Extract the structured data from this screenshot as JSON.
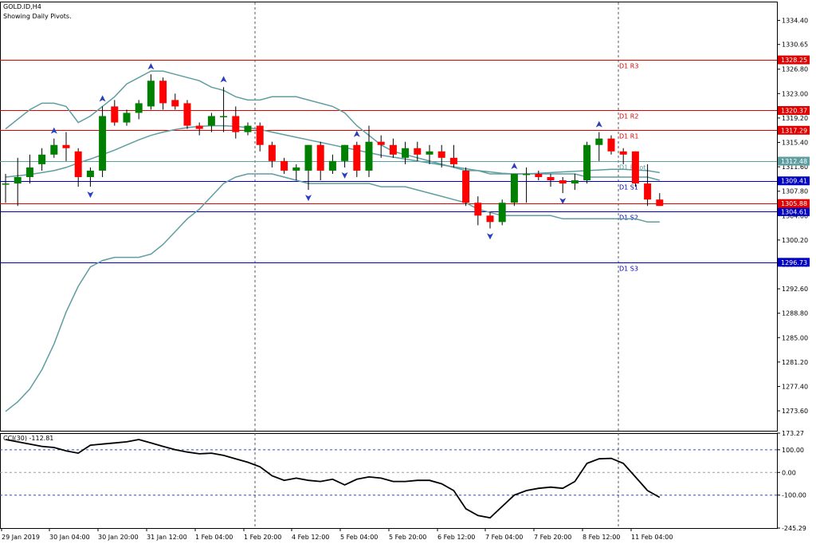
{
  "header": {
    "symbol": "GOLD.ID,H4",
    "subtitle": "Showing Daily Pivots."
  },
  "indicator": {
    "label": "CCI(30) -112.81"
  },
  "colors": {
    "bull": "#008000",
    "bear": "#ff0000",
    "band": "#5f9ea0",
    "resistance": "#e00000",
    "support": "#0000c0",
    "pivot": "#5f9ea0",
    "cci": "#000000",
    "cci_level": "#2f4fbf"
  },
  "chart_data": [
    {
      "type": "candlestick",
      "title": "GOLD.ID,H4",
      "subtitle": "Showing Daily Pivots.",
      "ylim": [
        1270.5,
        1337.2
      ],
      "price_ticks": [
        "1334.40",
        "1330.65",
        "1326.80",
        "1323.00",
        "1319.20",
        "1315.40",
        "1311.60",
        "1307.80",
        "1304.00",
        "1300.20",
        "1296.40",
        "1292.60",
        "1288.80",
        "1285.00",
        "1281.20",
        "1277.40",
        "1273.60"
      ],
      "x_ticks": [
        "29 Jan 2019",
        "30 Jan 04:00",
        "30 Jan 20:00",
        "31 Jan 12:00",
        "1 Feb 04:00",
        "1 Feb 20:00",
        "4 Feb 12:00",
        "5 Feb 04:00",
        "5 Feb 20:00",
        "6 Feb 12:00",
        "7 Feb 04:00",
        "7 Feb 20:00",
        "8 Feb 12:00",
        "11 Feb 04:00"
      ],
      "candles": [
        {
          "o": 1309.0,
          "h": 1310.5,
          "l": 1306.0,
          "c": 1309.0
        },
        {
          "o": 1309.0,
          "h": 1313.0,
          "l": 1305.5,
          "c": 1310.0
        },
        {
          "o": 1310.0,
          "h": 1313.5,
          "l": 1309.0,
          "c": 1311.5
        },
        {
          "o": 1312.0,
          "h": 1314.5,
          "l": 1311.0,
          "c": 1313.5
        },
        {
          "o": 1313.5,
          "h": 1316.0,
          "l": 1313.0,
          "c": 1315.0
        },
        {
          "o": 1315.0,
          "h": 1317.0,
          "l": 1312.5,
          "c": 1314.5
        },
        {
          "o": 1314.0,
          "h": 1314.5,
          "l": 1308.5,
          "c": 1310.0
        },
        {
          "o": 1310.0,
          "h": 1311.5,
          "l": 1308.5,
          "c": 1311.0
        },
        {
          "o": 1311.0,
          "h": 1321.0,
          "l": 1310.0,
          "c": 1319.5
        },
        {
          "o": 1321.0,
          "h": 1322.0,
          "l": 1318.0,
          "c": 1318.5
        },
        {
          "o": 1318.5,
          "h": 1320.5,
          "l": 1318.0,
          "c": 1320.0
        },
        {
          "o": 1320.0,
          "h": 1322.0,
          "l": 1319.0,
          "c": 1321.5
        },
        {
          "o": 1321.0,
          "h": 1326.0,
          "l": 1320.5,
          "c": 1325.0
        },
        {
          "o": 1325.0,
          "h": 1325.5,
          "l": 1320.5,
          "c": 1321.5
        },
        {
          "o": 1322.0,
          "h": 1323.0,
          "l": 1320.5,
          "c": 1321.0
        },
        {
          "o": 1321.5,
          "h": 1322.0,
          "l": 1317.5,
          "c": 1318.0
        },
        {
          "o": 1318.0,
          "h": 1318.5,
          "l": 1316.5,
          "c": 1317.5
        },
        {
          "o": 1318.0,
          "h": 1320.0,
          "l": 1317.0,
          "c": 1319.5
        },
        {
          "o": 1319.5,
          "h": 1324.0,
          "l": 1317.0,
          "c": 1319.5
        },
        {
          "o": 1319.5,
          "h": 1321.0,
          "l": 1316.0,
          "c": 1317.0
        },
        {
          "o": 1317.0,
          "h": 1318.5,
          "l": 1316.5,
          "c": 1318.0
        },
        {
          "o": 1318.0,
          "h": 1318.5,
          "l": 1314.0,
          "c": 1315.0
        },
        {
          "o": 1315.0,
          "h": 1315.5,
          "l": 1311.5,
          "c": 1312.5
        },
        {
          "o": 1312.5,
          "h": 1313.0,
          "l": 1310.5,
          "c": 1311.0
        },
        {
          "o": 1311.0,
          "h": 1312.0,
          "l": 1309.5,
          "c": 1311.5
        },
        {
          "o": 1311.0,
          "h": 1315.0,
          "l": 1308.0,
          "c": 1315.0
        },
        {
          "o": 1315.0,
          "h": 1315.5,
          "l": 1309.5,
          "c": 1311.0
        },
        {
          "o": 1311.0,
          "h": 1313.5,
          "l": 1310.5,
          "c": 1312.5
        },
        {
          "o": 1312.5,
          "h": 1315.0,
          "l": 1311.5,
          "c": 1315.0
        },
        {
          "o": 1315.0,
          "h": 1315.5,
          "l": 1310.0,
          "c": 1311.0
        },
        {
          "o": 1311.0,
          "h": 1318.0,
          "l": 1310.0,
          "c": 1315.5
        },
        {
          "o": 1315.5,
          "h": 1316.5,
          "l": 1313.0,
          "c": 1315.0
        },
        {
          "o": 1315.0,
          "h": 1316.0,
          "l": 1313.0,
          "c": 1313.5
        },
        {
          "o": 1313.0,
          "h": 1315.5,
          "l": 1312.0,
          "c": 1314.5
        },
        {
          "o": 1314.5,
          "h": 1315.5,
          "l": 1312.5,
          "c": 1313.5
        },
        {
          "o": 1313.5,
          "h": 1315.0,
          "l": 1312.0,
          "c": 1314.0
        },
        {
          "o": 1314.0,
          "h": 1315.0,
          "l": 1311.5,
          "c": 1313.0
        },
        {
          "o": 1313.0,
          "h": 1315.0,
          "l": 1311.5,
          "c": 1312.0
        },
        {
          "o": 1311.0,
          "h": 1311.5,
          "l": 1305.5,
          "c": 1306.0
        },
        {
          "o": 1306.0,
          "h": 1307.0,
          "l": 1302.5,
          "c": 1304.0
        },
        {
          "o": 1304.0,
          "h": 1304.5,
          "l": 1302.0,
          "c": 1303.0
        },
        {
          "o": 1303.0,
          "h": 1306.5,
          "l": 1302.5,
          "c": 1306.0
        },
        {
          "o": 1306.0,
          "h": 1310.5,
          "l": 1305.5,
          "c": 1310.5
        },
        {
          "o": 1310.5,
          "h": 1311.5,
          "l": 1306.0,
          "c": 1310.5
        },
        {
          "o": 1310.5,
          "h": 1311.0,
          "l": 1309.5,
          "c": 1310.0
        },
        {
          "o": 1310.0,
          "h": 1310.5,
          "l": 1308.5,
          "c": 1309.5
        },
        {
          "o": 1309.5,
          "h": 1310.0,
          "l": 1307.5,
          "c": 1309.0
        },
        {
          "o": 1309.0,
          "h": 1310.5,
          "l": 1308.0,
          "c": 1309.5
        },
        {
          "o": 1309.5,
          "h": 1315.5,
          "l": 1309.0,
          "c": 1315.0
        },
        {
          "o": 1315.0,
          "h": 1317.0,
          "l": 1312.5,
          "c": 1316.0
        },
        {
          "o": 1316.0,
          "h": 1316.5,
          "l": 1313.5,
          "c": 1314.0
        },
        {
          "o": 1314.0,
          "h": 1314.5,
          "l": 1312.0,
          "c": 1313.5
        },
        {
          "o": 1314.0,
          "h": 1314.0,
          "l": 1308.5,
          "c": 1309.0
        },
        {
          "o": 1309.0,
          "h": 1312.0,
          "l": 1305.5,
          "c": 1306.5
        },
        {
          "o": 1306.5,
          "h": 1307.5,
          "l": 1305.5,
          "c": 1305.5
        }
      ],
      "bollinger_upper": [
        1317.5,
        1319.0,
        1320.5,
        1321.5,
        1321.5,
        1321.0,
        1318.5,
        1319.5,
        1321.0,
        1322.5,
        1324.5,
        1325.5,
        1326.5,
        1326.5,
        1326.0,
        1325.5,
        1325.0,
        1324.0,
        1323.5,
        1322.5,
        1322.0,
        1322.0,
        1322.5,
        1322.5,
        1322.5,
        1322.0,
        1321.5,
        1321.0,
        1320.0,
        1318.0,
        1316.5,
        1315.0,
        1314.0,
        1313.5,
        1313.0,
        1312.5,
        1312.0,
        1311.5,
        1311.0,
        1311.0,
        1310.5,
        1310.5,
        1310.5,
        1310.5,
        1310.5,
        1310.5,
        1310.5,
        1310.5,
        1310.0,
        1310.0,
        1310.0,
        1310.0,
        1310.0,
        1310.0,
        1309.5
      ],
      "bollinger_middle": [
        1310.0,
        1310.2,
        1310.4,
        1310.7,
        1311.0,
        1311.5,
        1312.2,
        1312.8,
        1313.5,
        1314.2,
        1315.0,
        1315.8,
        1316.5,
        1317.0,
        1317.4,
        1317.7,
        1317.9,
        1318.0,
        1318.0,
        1317.9,
        1317.7,
        1317.4,
        1317.0,
        1316.6,
        1316.2,
        1315.8,
        1315.4,
        1315.0,
        1314.6,
        1314.2,
        1313.8,
        1313.4,
        1313.1,
        1312.8,
        1312.5,
        1312.2,
        1311.9,
        1311.6,
        1311.3,
        1311.0,
        1310.8,
        1310.6,
        1310.5,
        1310.5,
        1310.6,
        1310.7,
        1310.8,
        1310.9,
        1311.0,
        1311.1,
        1311.2,
        1311.2,
        1311.1,
        1311.0,
        1310.7
      ],
      "bollinger_lower": [
        1273.5,
        1275.0,
        1277.0,
        1280.0,
        1284.0,
        1289.0,
        1293.0,
        1296.0,
        1297.0,
        1297.5,
        1297.5,
        1297.5,
        1298.0,
        1299.5,
        1301.5,
        1303.5,
        1305.0,
        1307.0,
        1309.0,
        1310.0,
        1310.5,
        1310.5,
        1310.5,
        1310.0,
        1309.5,
        1309.0,
        1309.0,
        1309.0,
        1309.0,
        1309.0,
        1309.0,
        1308.5,
        1308.5,
        1308.5,
        1308.0,
        1307.5,
        1307.0,
        1306.5,
        1306.0,
        1305.0,
        1304.5,
        1304.0,
        1304.0,
        1304.0,
        1304.0,
        1304.0,
        1303.5,
        1303.5,
        1303.5,
        1303.5,
        1303.5,
        1303.5,
        1303.5,
        1303.0,
        1303.0
      ],
      "pivots": [
        {
          "label": "D1 R3",
          "value": 1328.25,
          "tag": "1328.25",
          "kind": "resistance"
        },
        {
          "label": "D1 R2",
          "value": 1320.37,
          "tag": "1320.37",
          "kind": "resistance"
        },
        {
          "label": "D1 R1",
          "value": 1317.29,
          "tag": "1317.29",
          "kind": "resistance"
        },
        {
          "label": "D1 Pivot",
          "value": 1312.48,
          "tag": "1312.48",
          "kind": "pivot"
        },
        {
          "label": "D1 S1",
          "value": 1309.41,
          "tag": "1309.41",
          "kind": "support"
        },
        {
          "label": "D1 S2",
          "value": 1304.61,
          "tag": "1304.61",
          "kind": "support"
        },
        {
          "label": "D1 S3",
          "value": 1296.73,
          "tag": "1296.73",
          "kind": "support"
        }
      ],
      "current_price": {
        "value": 1305.88,
        "tag": "1305.88"
      },
      "fractals_up": [
        4,
        8,
        12,
        18,
        29,
        42,
        49
      ],
      "fractals_down": [
        7,
        25,
        28,
        40,
        46
      ]
    },
    {
      "type": "line",
      "title": "CCI(30) -112.81",
      "ylim": [
        -245.29,
        173.27
      ],
      "y_ticks": [
        "173.27",
        "100.00",
        "0.00",
        "-100.00",
        "-245.29"
      ],
      "levels": [
        100,
        0,
        -100
      ],
      "values": [
        145,
        135,
        125,
        115,
        110,
        95,
        85,
        120,
        125,
        130,
        135,
        145,
        130,
        115,
        100,
        90,
        82,
        85,
        75,
        60,
        45,
        25,
        -15,
        -35,
        -25,
        -35,
        -40,
        -30,
        -55,
        -30,
        -20,
        -25,
        -40,
        -40,
        -35,
        -35,
        -50,
        -80,
        -160,
        -190,
        -200,
        -150,
        -100,
        -80,
        -70,
        -65,
        -70,
        -40,
        40,
        60,
        62,
        40,
        -20,
        -80,
        -110
      ]
    }
  ]
}
